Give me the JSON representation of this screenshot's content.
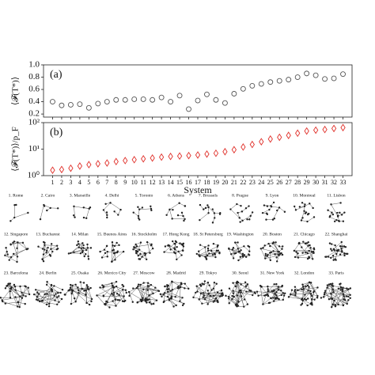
{
  "chart_data": [
    {
      "type": "scatter",
      "panel_label": "(a)",
      "ylabel": "⟨𝓕(T*)⟩",
      "marker": "circle",
      "color": "#555555",
      "x": [
        1,
        2,
        3,
        4,
        5,
        6,
        7,
        8,
        9,
        10,
        11,
        12,
        13,
        14,
        15,
        16,
        17,
        18,
        19,
        20,
        21,
        22,
        23,
        24,
        25,
        26,
        27,
        28,
        29,
        30,
        31,
        32,
        33
      ],
      "values": [
        0.4,
        0.34,
        0.35,
        0.36,
        0.3,
        0.37,
        0.4,
        0.43,
        0.43,
        0.44,
        0.44,
        0.43,
        0.47,
        0.4,
        0.5,
        0.28,
        0.42,
        0.52,
        0.43,
        0.38,
        0.53,
        0.61,
        0.66,
        0.69,
        0.72,
        0.74,
        0.76,
        0.8,
        0.86,
        0.83,
        0.77,
        0.78,
        0.85
      ],
      "xlim": [
        0,
        34
      ],
      "ylim": [
        0.15,
        1.0
      ],
      "yticks": [
        0.2,
        0.4,
        0.6,
        0.8,
        {
          "value": 1.0,
          "label": "1.0"
        }
      ]
    },
    {
      "type": "scatter",
      "panel_label": "(b)",
      "ylabel": "⟨𝓕(T*)⟩/p_F",
      "xlabel": "System",
      "marker": "diamond",
      "color": "#e0302a",
      "log_y": true,
      "x": [
        1,
        2,
        3,
        4,
        5,
        6,
        7,
        8,
        9,
        10,
        11,
        12,
        13,
        14,
        15,
        16,
        17,
        18,
        19,
        20,
        21,
        22,
        23,
        24,
        25,
        26,
        27,
        28,
        29,
        30,
        31,
        32,
        33
      ],
      "values": [
        1.6,
        1.7,
        1.9,
        2.3,
        2.6,
        2.8,
        3.0,
        3.4,
        3.7,
        4.0,
        4.3,
        4.6,
        5.0,
        5.3,
        5.5,
        5.7,
        6.0,
        6.5,
        7.0,
        8.0,
        9.5,
        12,
        15,
        19,
        24,
        28,
        33,
        40,
        48,
        52,
        55,
        60,
        65
      ],
      "xlim": [
        0,
        34
      ],
      "ylim": [
        1,
        100
      ],
      "yticks": [
        {
          "value": 1,
          "label": "10⁰"
        },
        {
          "value": 10,
          "label": "10¹"
        },
        {
          "value": 100,
          "label": "10²"
        }
      ]
    }
  ],
  "networks": [
    "1. Rome",
    "2. Cairo",
    "3. Marseille",
    "4. Delhi",
    "5. Toronto",
    "6. Athens",
    "7. Brussels",
    "8. Prague",
    "9. Lyon",
    "10. Montreal",
    "11. Lisbon",
    "12. Singapore",
    "13. Bucharest",
    "14. Milan",
    "15. Buenos Aires",
    "16. Stockholm",
    "17. Hong Kong",
    "18. St Petersburg",
    "19. Washington",
    "20. Boston",
    "21. Chicago",
    "22. Shanghai",
    "23. Barcelona",
    "24. Berlin",
    "25. Osaka",
    "26. Mexico City",
    "27. Moscow",
    "28. Madrid",
    "29. Tokyo",
    "30. Seoul",
    "31. New York",
    "32. London",
    "33. Paris"
  ]
}
